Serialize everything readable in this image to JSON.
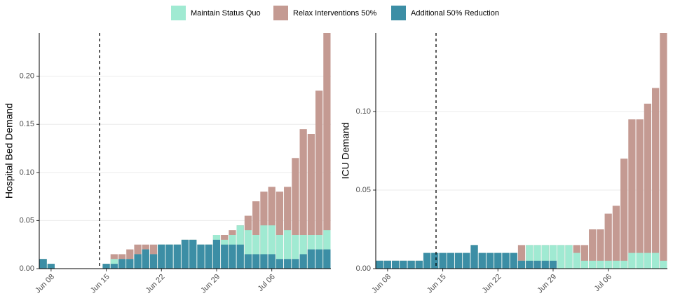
{
  "legend": {
    "position": "top"
  },
  "chart_data": [
    {
      "type": "bar",
      "overlay": true,
      "ylabel": "Hospital Bed Demand",
      "categories": [
        null,
        "Jun 08",
        null,
        null,
        null,
        null,
        null,
        null,
        "Jun 15",
        null,
        null,
        null,
        null,
        null,
        null,
        "Jun 22",
        null,
        null,
        null,
        null,
        null,
        null,
        "Jun 29",
        null,
        null,
        null,
        null,
        null,
        null,
        "Jul 06",
        null,
        null,
        null,
        null,
        null,
        null,
        null
      ],
      "ylim": [
        0,
        0.245
      ],
      "yticks": [
        {
          "value": 0,
          "label": "0.00"
        },
        {
          "value": 0.05,
          "label": "0.05"
        },
        {
          "value": 0.1,
          "label": "0.10"
        },
        {
          "value": 0.15,
          "label": "0.15"
        },
        {
          "value": 0.2,
          "label": "0.20"
        }
      ],
      "grid": true,
      "series": [
        {
          "name": "Maintain Status Quo",
          "color": "#a0ead2",
          "values": [
            0.01,
            0.005,
            0,
            0,
            0,
            0,
            0,
            0,
            0.005,
            0.01,
            0.01,
            0.01,
            0.015,
            0.02,
            0.015,
            0.025,
            0.025,
            0.025,
            0.03,
            0.03,
            0.025,
            0.025,
            0.035,
            0.03,
            0.035,
            0.045,
            0.04,
            0.035,
            0.045,
            0.045,
            0.035,
            0.04,
            0.035,
            0.035,
            0.035,
            0.035,
            0.04
          ]
        },
        {
          "name": "Relax Interventions 50%",
          "color": "#c49a92",
          "values": [
            0.01,
            0.005,
            0,
            0,
            0,
            0,
            0,
            0,
            0.005,
            0.015,
            0.015,
            0.02,
            0.025,
            0.025,
            0.025,
            0.025,
            0.025,
            0.025,
            0.03,
            0.03,
            0.025,
            0.025,
            0.035,
            0.035,
            0.04,
            0.045,
            0.055,
            0.07,
            0.08,
            0.085,
            0.08,
            0.085,
            0.115,
            0.145,
            0.14,
            0.185,
            0.245
          ]
        },
        {
          "name": "Additional 50% Reduction",
          "color": "#3c8ea5",
          "values": [
            0.01,
            0.005,
            0,
            0,
            0,
            0,
            0,
            0,
            0.005,
            0.005,
            0.01,
            0.01,
            0.015,
            0.02,
            0.015,
            0.025,
            0.025,
            0.025,
            0.03,
            0.03,
            0.025,
            0.025,
            0.03,
            0.025,
            0.025,
            0.025,
            0.015,
            0.015,
            0.015,
            0.015,
            0.01,
            0.01,
            0.01,
            0.015,
            0.02,
            0.02,
            0.02
          ]
        }
      ]
    },
    {
      "type": "bar",
      "overlay": true,
      "ylabel": "ICU Demand",
      "categories": [
        null,
        "Jun 08",
        null,
        null,
        null,
        null,
        null,
        null,
        "Jun 15",
        null,
        null,
        null,
        null,
        null,
        null,
        "Jun 22",
        null,
        null,
        null,
        null,
        null,
        null,
        "Jun 29",
        null,
        null,
        null,
        null,
        null,
        null,
        "Jul 06",
        null,
        null,
        null,
        null,
        null,
        null,
        null
      ],
      "ylim": [
        0,
        0.15
      ],
      "yticks": [
        {
          "value": 0,
          "label": "0.00"
        },
        {
          "value": 0.05,
          "label": "0.05"
        },
        {
          "value": 0.1,
          "label": "0.10"
        }
      ],
      "grid": true,
      "series": [
        {
          "name": "Maintain Status Quo",
          "color": "#a0ead2",
          "values": [
            0.005,
            0.005,
            0.005,
            0.005,
            0.005,
            0.005,
            0.01,
            0.01,
            0.01,
            0.01,
            0.01,
            0.01,
            0.015,
            0.01,
            0.01,
            0.01,
            0.01,
            0.01,
            0.005,
            0.015,
            0.015,
            0.015,
            0.015,
            0.015,
            0.015,
            0.01,
            0.005,
            0.005,
            0.005,
            0.005,
            0.005,
            0.005,
            0.01,
            0.01,
            0.01,
            0.01,
            0.005
          ]
        },
        {
          "name": "Relax Interventions 50%",
          "color": "#c49a92",
          "values": [
            0.005,
            0.005,
            0.005,
            0.005,
            0.005,
            0.005,
            0.01,
            0.01,
            0.01,
            0.01,
            0.01,
            0.01,
            0.015,
            0.01,
            0.01,
            0.01,
            0.01,
            0.01,
            0.015,
            0.015,
            0.015,
            0.015,
            0.015,
            0.015,
            0.015,
            0.015,
            0.015,
            0.025,
            0.025,
            0.035,
            0.04,
            0.07,
            0.095,
            0.095,
            0.105,
            0.115,
            0.15
          ]
        },
        {
          "name": "Additional 50% Reduction",
          "color": "#3c8ea5",
          "values": [
            0.005,
            0.005,
            0.005,
            0.005,
            0.005,
            0.005,
            0.01,
            0.01,
            0.01,
            0.01,
            0.01,
            0.01,
            0.015,
            0.01,
            0.01,
            0.01,
            0.01,
            0.01,
            0.005,
            0.005,
            0.005,
            0.005,
            0.005,
            0,
            0,
            0,
            0,
            0,
            0,
            0,
            0,
            0,
            0,
            0,
            0,
            0,
            0
          ]
        }
      ]
    }
  ]
}
